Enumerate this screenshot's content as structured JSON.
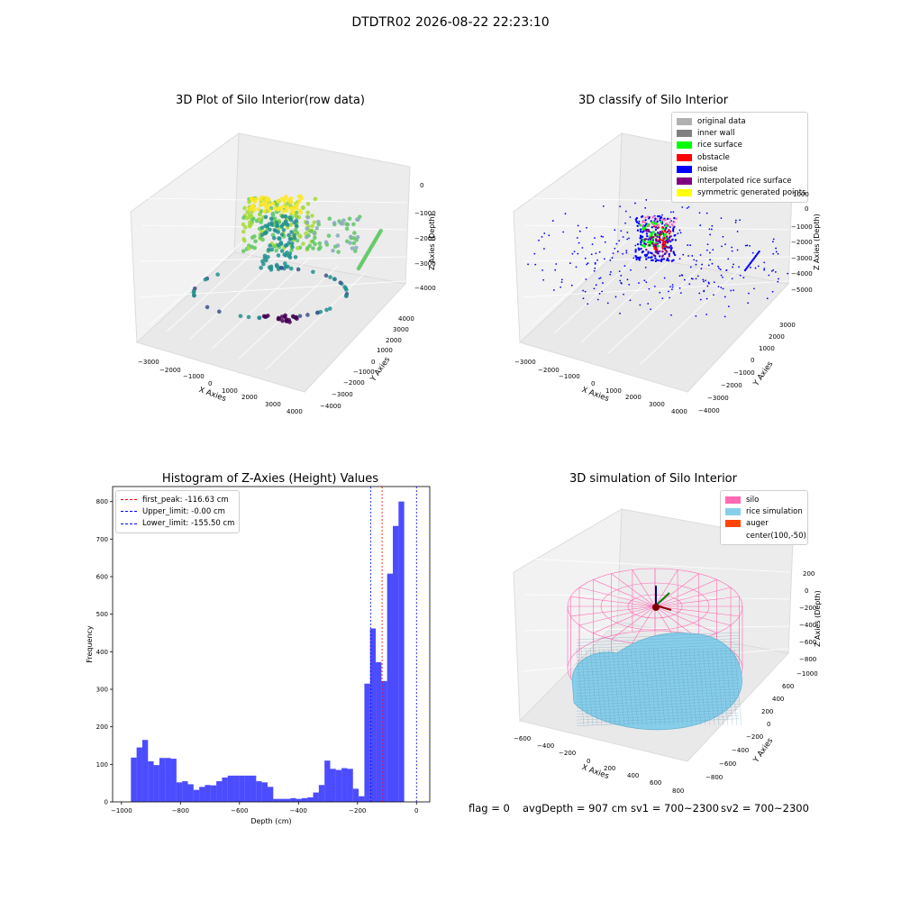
{
  "figure": {
    "suptitle": "DTDTR02 2026-08-22 22:23:10"
  },
  "panel1": {
    "title": "3D Plot of Silo Interior(row data)",
    "xlabel": "X Axies",
    "ylabel": "Y Axies",
    "zlabel": "Z Axies (Depth)",
    "xticks": [
      "−3000",
      "−2000",
      "−1000",
      "0",
      "1000",
      "2000",
      "3000",
      "4000"
    ],
    "yticks": [
      "−4000",
      "−3000",
      "−2000",
      "−1000",
      "0",
      "1000",
      "2000",
      "3000",
      "4000"
    ],
    "zticks": [
      "0",
      "−1000",
      "−2000",
      "−3000",
      "−4000"
    ]
  },
  "panel2": {
    "title": "3D classify of Silo Interior",
    "xlabel": "X Axies",
    "ylabel": "Y Axies",
    "zlabel": "Z Axies (Depth)",
    "xticks": [
      "−3000",
      "−2000",
      "−1000",
      "0",
      "1000",
      "2000",
      "3000",
      "4000"
    ],
    "yticks": [
      "−4000",
      "−3000",
      "−2000",
      "−1000",
      "0",
      "1000",
      "2000",
      "3000"
    ],
    "zticks": [
      "1000",
      "0",
      "−1000",
      "−2000",
      "−3000",
      "−4000",
      "−5000"
    ],
    "legend": [
      {
        "label": "original data",
        "color": "#b0b0b0"
      },
      {
        "label": "inner wall",
        "color": "#808080"
      },
      {
        "label": "rice surface",
        "color": "#00ff00"
      },
      {
        "label": "obstacle",
        "color": "#ff0000"
      },
      {
        "label": "noise",
        "color": "#0000ff"
      },
      {
        "label": "interpolated rice surface",
        "color": "#800080"
      },
      {
        "label": "symmetric generated points",
        "color": "#ffff00"
      }
    ]
  },
  "panel3": {
    "title": "Histogram of Z-Axies (Height) Values",
    "legend": [
      {
        "label": "first_peak: -116.63 cm",
        "color": "#ff0000"
      },
      {
        "label": "Upper_limit: -0.00 cm",
        "color": "#0000ff"
      },
      {
        "label": "Lower_limit: -155.50 cm",
        "color": "#0000ff"
      }
    ]
  },
  "panel4": {
    "title": "3D simulation of Silo Interior",
    "xlabel": "X Axies",
    "ylabel": "Y Axies",
    "zlabel": "Z Axies (Depth)",
    "xticks": [
      "−600",
      "−400",
      "−200",
      "0",
      "200",
      "400",
      "600",
      "800"
    ],
    "yticks": [
      "−800",
      "−600",
      "−400",
      "−200",
      "0",
      "200",
      "400",
      "600"
    ],
    "zticks": [
      "200",
      "0",
      "−200",
      "−400",
      "−600",
      "−800",
      "−1000"
    ],
    "legend": [
      {
        "label": "silo",
        "color": "#ff69b4"
      },
      {
        "label": "rice simulation",
        "color": "#87ceeb"
      },
      {
        "label": "auger",
        "color": "#ff4500"
      },
      {
        "label": "center(100,-50)",
        "color": ""
      }
    ]
  },
  "status": {
    "flag": "flag = 0",
    "avg": "avgDepth = 907 cm",
    "sv1": "sv1 = 700~2300",
    "sv2": "sv2 = 700~2300"
  },
  "chart_data": [
    {
      "type": "scatter",
      "title": "3D Plot of Silo Interior(row data)",
      "xlabel": "X Axies",
      "ylabel": "Y Axies",
      "zlabel": "Z Axies (Depth)",
      "xlim": [
        -3500,
        4500
      ],
      "ylim": [
        -4000,
        4000
      ],
      "zlim": [
        -4500,
        0
      ]
    },
    {
      "type": "scatter",
      "title": "3D classify of Silo Interior",
      "xlabel": "X Axies",
      "ylabel": "Y Axies",
      "zlabel": "Z Axies (Depth)",
      "xlim": [
        -3500,
        4500
      ],
      "ylim": [
        -4000,
        3500
      ],
      "zlim": [
        -5500,
        1000
      ],
      "series": [
        {
          "name": "original data",
          "color": "#b0b0b0"
        },
        {
          "name": "inner wall",
          "color": "#808080"
        },
        {
          "name": "rice surface",
          "color": "#00ff00"
        },
        {
          "name": "obstacle",
          "color": "#ff0000"
        },
        {
          "name": "noise",
          "color": "#0000ff"
        },
        {
          "name": "interpolated rice surface",
          "color": "#800080"
        },
        {
          "name": "symmetric generated points",
          "color": "#ffff00"
        }
      ]
    },
    {
      "type": "bar",
      "title": "Histogram of Z-Axies (Height) Values",
      "xlabel": "Depth (cm)",
      "ylabel": "Frequency",
      "xlim": [
        -1030,
        45
      ],
      "ylim": [
        0,
        840
      ],
      "xticks": [
        -1000,
        -800,
        -600,
        -400,
        -200,
        0
      ],
      "yticks": [
        0,
        100,
        200,
        300,
        400,
        500,
        600,
        700,
        800
      ],
      "bin_start": -968,
      "bin_width": 19.3,
      "values": [
        118,
        145,
        165,
        108,
        98,
        117,
        117,
        115,
        52,
        55,
        47,
        32,
        40,
        45,
        44,
        55,
        65,
        70,
        70,
        70,
        70,
        70,
        55,
        52,
        40,
        8,
        8,
        8,
        10,
        8,
        10,
        12,
        25,
        45,
        110,
        88,
        85,
        90,
        88,
        35,
        15,
        315,
        462,
        372,
        322,
        608,
        735,
        800
      ],
      "color": "#0000ff",
      "vlines": [
        {
          "x": -116.63,
          "label": "first_peak: -116.63 cm",
          "color": "#ff0000"
        },
        {
          "x": -0.0,
          "label": "Upper_limit: -0.00 cm",
          "color": "#0000ff"
        },
        {
          "x": -155.5,
          "label": "Lower_limit: -155.50 cm",
          "color": "#0000ff"
        }
      ]
    },
    {
      "type": "scatter",
      "title": "3D simulation of Silo Interior",
      "xlabel": "X Axies",
      "ylabel": "Y Axies",
      "zlabel": "Z Axies (Depth)",
      "xlim": [
        -650,
        850
      ],
      "ylim": [
        -850,
        650
      ],
      "zlim": [
        -1100,
        300
      ],
      "series": [
        {
          "name": "silo",
          "color": "#ff69b4"
        },
        {
          "name": "rice simulation",
          "color": "#87ceeb"
        },
        {
          "name": "auger",
          "color": "#ff4500"
        },
        {
          "name": "center(100,-50)"
        }
      ]
    }
  ]
}
